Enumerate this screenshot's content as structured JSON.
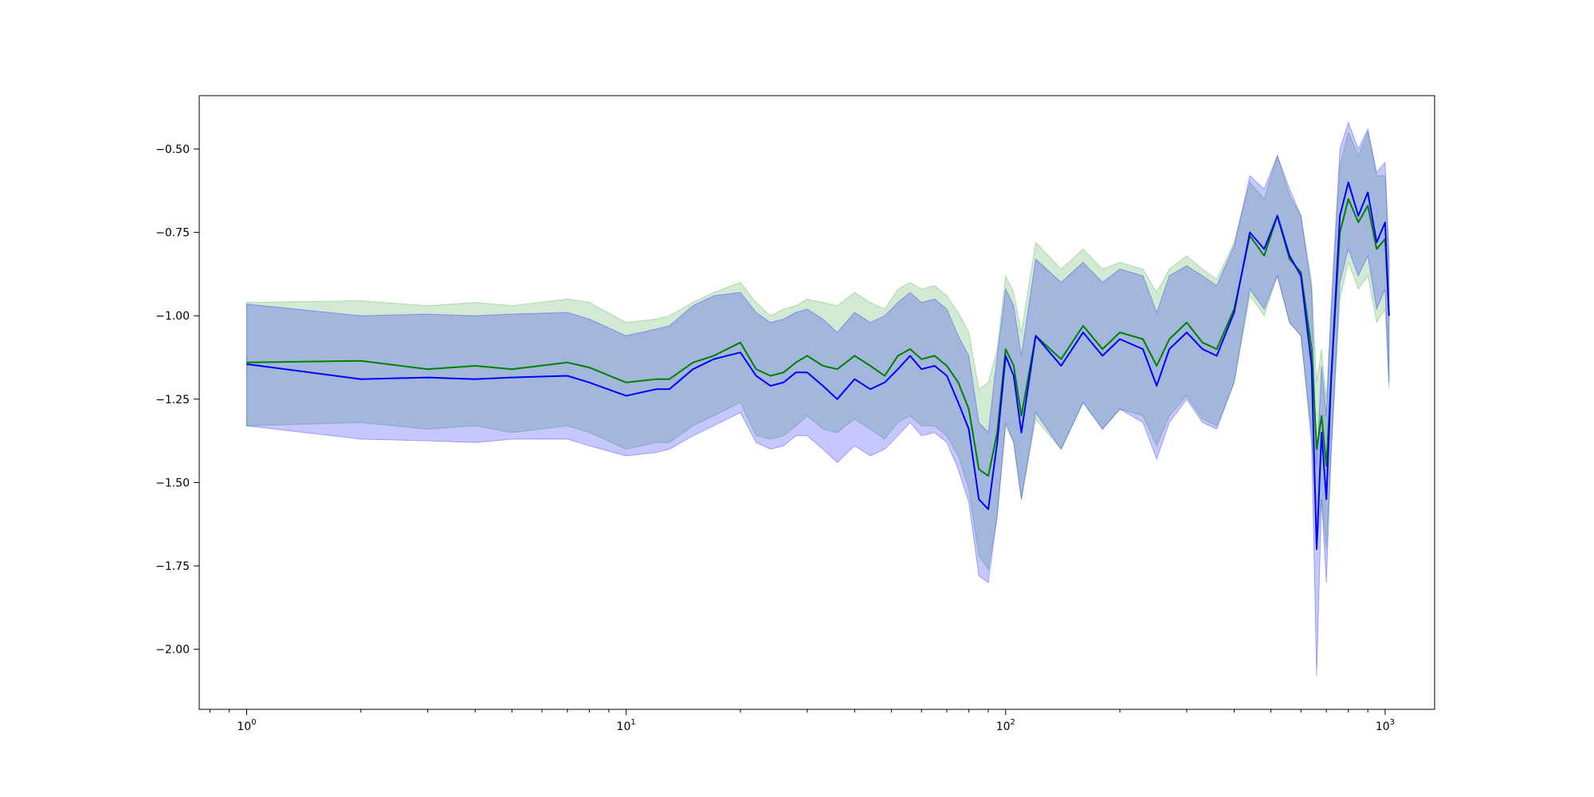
{
  "chart_data": {
    "type": "line",
    "x_scale": "log",
    "xlim": [
      0.75,
      1350
    ],
    "ylim": [
      -2.18,
      -0.34
    ],
    "x_tick_labels": [
      {
        "base": "10",
        "exp": "0",
        "value": 1
      },
      {
        "base": "10",
        "exp": "1",
        "value": 10
      },
      {
        "base": "10",
        "exp": "2",
        "value": 100
      },
      {
        "base": "10",
        "exp": "3",
        "value": 1000
      }
    ],
    "y_tick_labels": [
      {
        "text": "−0.50",
        "value": -0.5
      },
      {
        "text": "−0.75",
        "value": -0.75
      },
      {
        "text": "−1.00",
        "value": -1.0
      },
      {
        "text": "−1.25",
        "value": -1.25
      },
      {
        "text": "−1.50",
        "value": -1.5
      },
      {
        "text": "−1.75",
        "value": -1.75
      },
      {
        "text": "−2.00",
        "value": -2.0
      }
    ],
    "grid": false,
    "series": [
      {
        "color": "#008000",
        "band_color": "#2ca02c",
        "x": [
          1,
          2,
          3,
          4,
          5,
          7,
          8,
          10,
          12,
          13,
          15,
          17,
          20,
          22,
          24,
          26,
          28,
          30,
          33,
          36,
          40,
          44,
          48,
          52,
          56,
          60,
          65,
          70,
          75,
          80,
          85,
          90,
          95,
          100,
          105,
          110,
          120,
          140,
          160,
          180,
          200,
          230,
          250,
          270,
          300,
          330,
          360,
          400,
          440,
          480,
          520,
          560,
          600,
          640,
          660,
          680,
          700,
          720,
          760,
          800,
          850,
          900,
          950,
          1000,
          1024
        ],
        "y": [
          -1.14,
          -1.135,
          -1.16,
          -1.15,
          -1.16,
          -1.14,
          -1.155,
          -1.2,
          -1.19,
          -1.19,
          -1.14,
          -1.12,
          -1.08,
          -1.16,
          -1.18,
          -1.17,
          -1.14,
          -1.12,
          -1.15,
          -1.16,
          -1.12,
          -1.15,
          -1.18,
          -1.12,
          -1.1,
          -1.13,
          -1.12,
          -1.15,
          -1.2,
          -1.28,
          -1.46,
          -1.48,
          -1.35,
          -1.1,
          -1.15,
          -1.3,
          -1.06,
          -1.13,
          -1.03,
          -1.1,
          -1.05,
          -1.07,
          -1.15,
          -1.07,
          -1.02,
          -1.08,
          -1.1,
          -0.98,
          -0.76,
          -0.82,
          -0.7,
          -0.83,
          -0.87,
          -1.1,
          -1.4,
          -1.3,
          -1.45,
          -1.2,
          -0.75,
          -0.65,
          -0.72,
          -0.67,
          -0.8,
          -0.77,
          -1.0
        ],
        "upper": [
          -0.96,
          -0.955,
          -0.97,
          -0.96,
          -0.97,
          -0.95,
          -0.96,
          -1.02,
          -1.01,
          -1.0,
          -0.96,
          -0.93,
          -0.9,
          -0.96,
          -1.0,
          -0.98,
          -0.97,
          -0.95,
          -0.96,
          -0.97,
          -0.93,
          -0.96,
          -0.98,
          -0.92,
          -0.9,
          -0.92,
          -0.91,
          -0.94,
          -0.99,
          -1.05,
          -1.22,
          -1.2,
          -1.1,
          -0.88,
          -0.93,
          -1.05,
          -0.78,
          -0.86,
          -0.8,
          -0.86,
          -0.84,
          -0.86,
          -0.93,
          -0.86,
          -0.82,
          -0.86,
          -0.89,
          -0.78,
          -0.6,
          -0.65,
          -0.52,
          -0.64,
          -0.7,
          -0.9,
          -1.2,
          -1.1,
          -1.25,
          -1.0,
          -0.55,
          -0.45,
          -0.52,
          -0.45,
          -0.58,
          -0.58,
          -0.82
        ],
        "lower": [
          -1.33,
          -1.32,
          -1.34,
          -1.33,
          -1.35,
          -1.33,
          -1.35,
          -1.4,
          -1.38,
          -1.38,
          -1.33,
          -1.3,
          -1.26,
          -1.36,
          -1.37,
          -1.36,
          -1.33,
          -1.3,
          -1.34,
          -1.35,
          -1.31,
          -1.34,
          -1.37,
          -1.32,
          -1.3,
          -1.33,
          -1.33,
          -1.36,
          -1.42,
          -1.52,
          -1.72,
          -1.76,
          -1.6,
          -1.33,
          -1.38,
          -1.55,
          -1.31,
          -1.4,
          -1.26,
          -1.34,
          -1.28,
          -1.3,
          -1.39,
          -1.3,
          -1.24,
          -1.31,
          -1.33,
          -1.2,
          -0.94,
          -1.0,
          -0.88,
          -1.02,
          -1.06,
          -1.35,
          -1.7,
          -1.55,
          -1.7,
          -1.42,
          -0.95,
          -0.84,
          -0.92,
          -0.88,
          -1.02,
          -0.98,
          -1.22
        ]
      },
      {
        "color": "#0000ff",
        "band_color": "#0000ff",
        "x": [
          1,
          2,
          3,
          4,
          5,
          7,
          8,
          10,
          12,
          13,
          15,
          17,
          20,
          22,
          24,
          26,
          28,
          30,
          33,
          36,
          40,
          44,
          48,
          52,
          56,
          60,
          65,
          70,
          75,
          80,
          85,
          90,
          95,
          100,
          105,
          110,
          120,
          140,
          160,
          180,
          200,
          230,
          250,
          270,
          300,
          330,
          360,
          400,
          440,
          480,
          520,
          560,
          600,
          640,
          660,
          680,
          700,
          720,
          760,
          800,
          850,
          900,
          950,
          1000,
          1024
        ],
        "y": [
          -1.145,
          -1.19,
          -1.185,
          -1.19,
          -1.185,
          -1.18,
          -1.2,
          -1.24,
          -1.22,
          -1.22,
          -1.16,
          -1.13,
          -1.11,
          -1.18,
          -1.21,
          -1.2,
          -1.17,
          -1.17,
          -1.21,
          -1.25,
          -1.19,
          -1.22,
          -1.2,
          -1.16,
          -1.12,
          -1.16,
          -1.15,
          -1.18,
          -1.26,
          -1.34,
          -1.55,
          -1.58,
          -1.38,
          -1.12,
          -1.18,
          -1.35,
          -1.06,
          -1.15,
          -1.05,
          -1.12,
          -1.07,
          -1.1,
          -1.21,
          -1.1,
          -1.05,
          -1.1,
          -1.12,
          -0.99,
          -0.75,
          -0.8,
          -0.7,
          -0.82,
          -0.88,
          -1.15,
          -1.7,
          -1.35,
          -1.55,
          -1.2,
          -0.7,
          -0.6,
          -0.7,
          -0.63,
          -0.78,
          -0.72,
          -1.0
        ],
        "upper": [
          -0.965,
          -1.0,
          -0.995,
          -1.0,
          -0.995,
          -0.99,
          -1.01,
          -1.06,
          -1.04,
          -1.03,
          -0.97,
          -0.94,
          -0.93,
          -0.99,
          -1.02,
          -1.01,
          -0.99,
          -0.98,
          -1.01,
          -1.05,
          -0.99,
          -1.02,
          -1.0,
          -0.96,
          -0.93,
          -0.96,
          -0.95,
          -0.98,
          -1.06,
          -1.12,
          -1.32,
          -1.35,
          -1.12,
          -0.92,
          -0.97,
          -1.12,
          -0.83,
          -0.9,
          -0.84,
          -0.9,
          -0.86,
          -0.88,
          -0.99,
          -0.88,
          -0.85,
          -0.88,
          -0.91,
          -0.79,
          -0.58,
          -0.62,
          -0.52,
          -0.62,
          -0.7,
          -0.92,
          -1.45,
          -1.15,
          -1.3,
          -0.98,
          -0.5,
          -0.42,
          -0.5,
          -0.44,
          -0.57,
          -0.54,
          -0.82
        ],
        "lower": [
          -1.33,
          -1.37,
          -1.375,
          -1.38,
          -1.37,
          -1.37,
          -1.39,
          -1.42,
          -1.41,
          -1.4,
          -1.36,
          -1.33,
          -1.29,
          -1.38,
          -1.4,
          -1.39,
          -1.36,
          -1.36,
          -1.4,
          -1.44,
          -1.39,
          -1.42,
          -1.4,
          -1.36,
          -1.32,
          -1.36,
          -1.35,
          -1.38,
          -1.46,
          -1.56,
          -1.78,
          -1.8,
          -1.6,
          -1.32,
          -1.38,
          -1.55,
          -1.29,
          -1.4,
          -1.26,
          -1.34,
          -1.28,
          -1.32,
          -1.43,
          -1.32,
          -1.25,
          -1.32,
          -1.34,
          -1.2,
          -0.92,
          -0.98,
          -0.88,
          -1.02,
          -1.06,
          -1.38,
          -2.08,
          -1.55,
          -1.8,
          -1.42,
          -0.9,
          -0.8,
          -0.88,
          -0.82,
          -0.98,
          -0.92,
          -1.2
        ]
      }
    ]
  }
}
